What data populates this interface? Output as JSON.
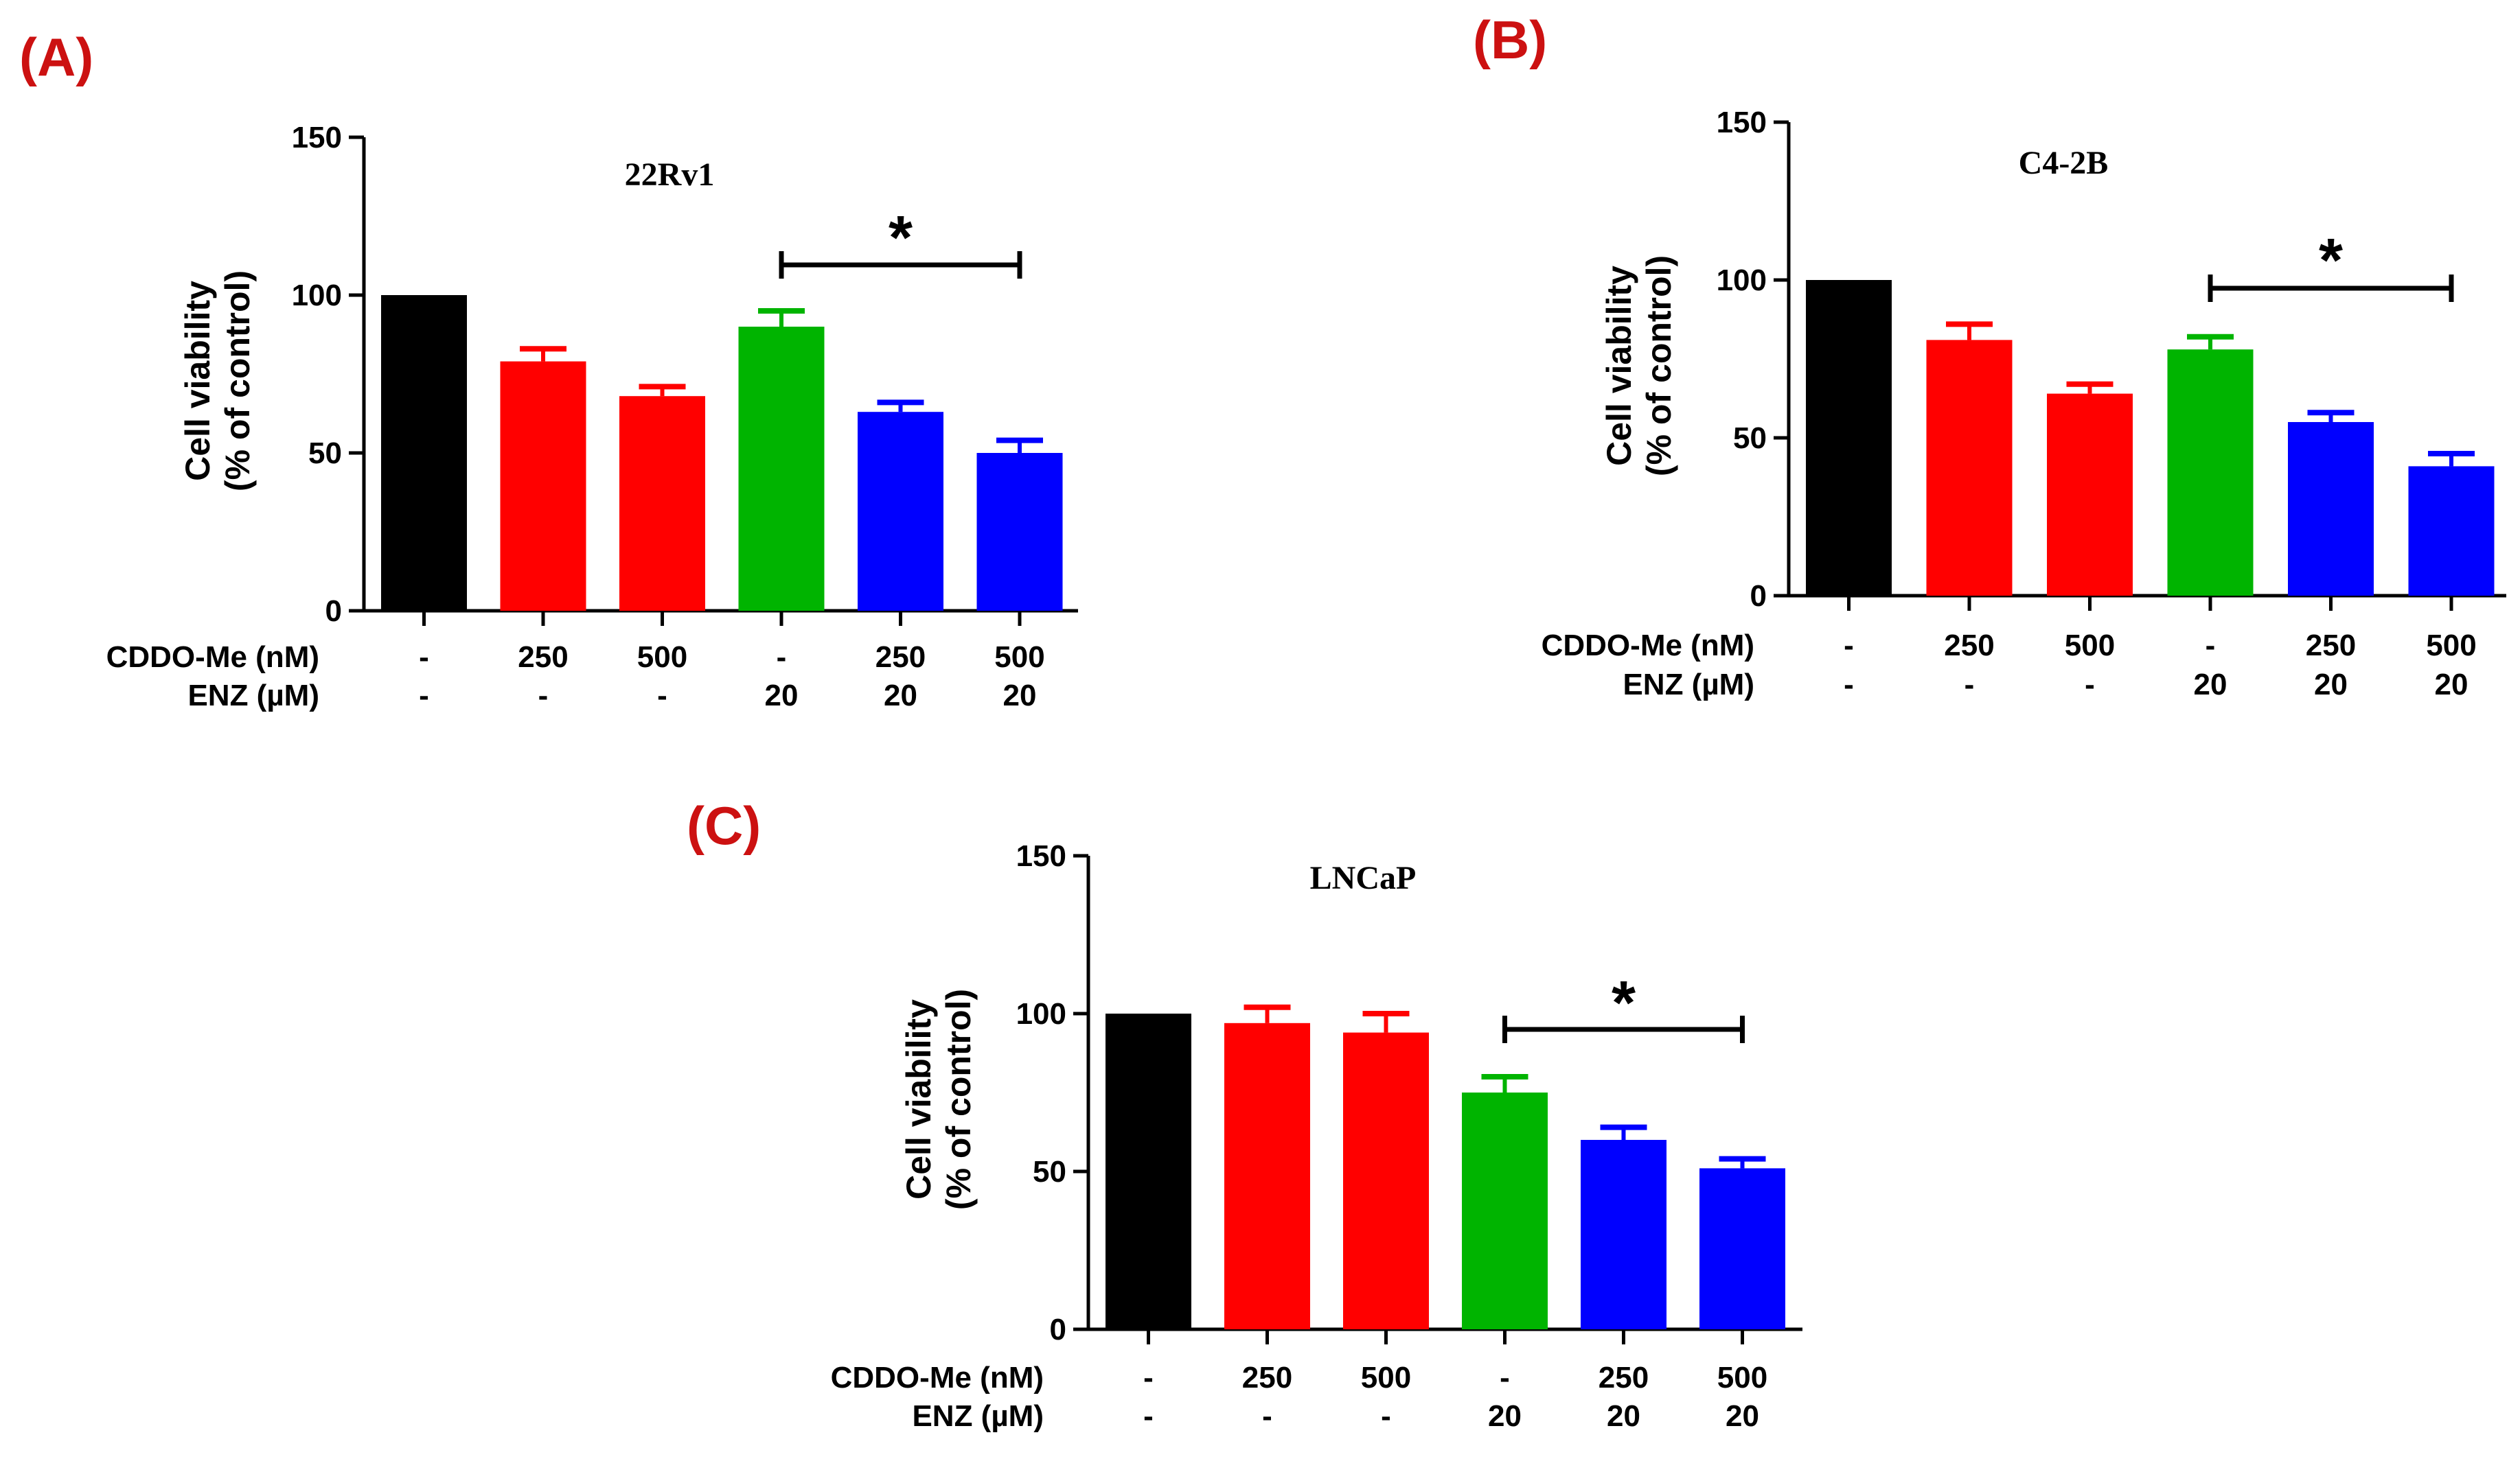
{
  "colors": {
    "control": "#000000",
    "cddo": "#ff0000",
    "enz": "#00b400",
    "combo": "#0000ff",
    "panel_letter": "#cc1111",
    "axis": "#000000"
  },
  "chart_data": [
    {
      "panel": "(A)",
      "type": "bar",
      "title": "22Rv1",
      "ylabel_line1": "Cell viability",
      "ylabel_line2": "(% of control)",
      "ylim": [
        0,
        150
      ],
      "yticks": [
        "0",
        "50",
        "100",
        "150"
      ],
      "row1_label": "CDDO-Me (nM)",
      "row2_label": "ENZ (µM)",
      "cddo": [
        "-",
        "250",
        "500",
        "-",
        "250",
        "500"
      ],
      "enz": [
        "-",
        "-",
        "-",
        "20",
        "20",
        "20"
      ],
      "values": [
        100,
        79,
        68,
        90,
        63,
        50
      ],
      "errors": [
        0,
        4,
        3,
        5,
        3,
        4
      ],
      "color_keys": [
        "control",
        "cddo",
        "cddo",
        "enz",
        "combo",
        "combo"
      ],
      "significance": "*",
      "sig_from": 3,
      "sig_to": 5
    },
    {
      "panel": "(B)",
      "type": "bar",
      "title": "C4-2B",
      "ylabel_line1": "Cell viability",
      "ylabel_line2": "(% of control)",
      "ylim": [
        0,
        150
      ],
      "yticks": [
        "0",
        "50",
        "100",
        "150"
      ],
      "row1_label": "CDDO-Me (nM)",
      "row2_label": "ENZ (µM)",
      "cddo": [
        "-",
        "250",
        "500",
        "-",
        "250",
        "500"
      ],
      "enz": [
        "-",
        "-",
        "-",
        "20",
        "20",
        "20"
      ],
      "values": [
        100,
        81,
        64,
        78,
        55,
        41
      ],
      "errors": [
        0,
        5,
        3,
        4,
        3,
        4
      ],
      "color_keys": [
        "control",
        "cddo",
        "cddo",
        "enz",
        "combo",
        "combo"
      ],
      "significance": "*",
      "sig_from": 3,
      "sig_to": 5
    },
    {
      "panel": "(C)",
      "type": "bar",
      "title": "LNCaP",
      "ylabel_line1": "Cell viability",
      "ylabel_line2": "(% of control)",
      "ylim": [
        0,
        150
      ],
      "yticks": [
        "0",
        "50",
        "100",
        "150"
      ],
      "row1_label": "CDDO-Me (nM)",
      "row2_label": "ENZ (µM)",
      "cddo": [
        "-",
        "250",
        "500",
        "-",
        "250",
        "500"
      ],
      "enz": [
        "-",
        "-",
        "-",
        "20",
        "20",
        "20"
      ],
      "values": [
        100,
        97,
        94,
        75,
        60,
        51
      ],
      "errors": [
        0,
        5,
        6,
        5,
        4,
        3
      ],
      "color_keys": [
        "control",
        "cddo",
        "cddo",
        "enz",
        "combo",
        "combo"
      ],
      "significance": "*",
      "sig_from": 3,
      "sig_to": 5
    }
  ]
}
